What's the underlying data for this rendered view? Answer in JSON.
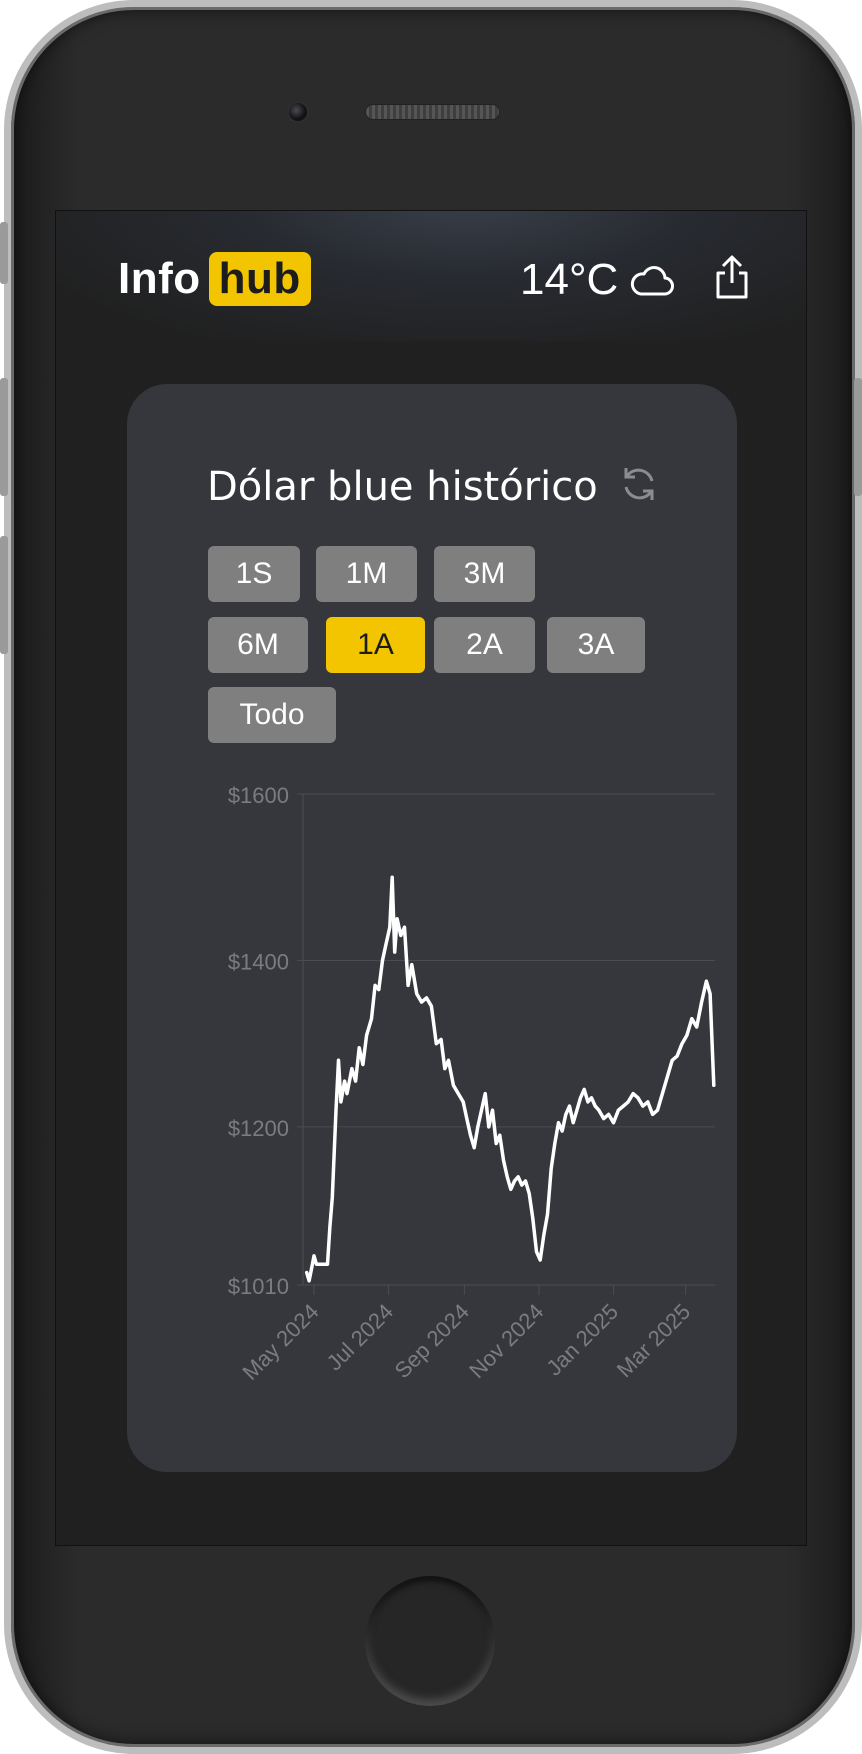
{
  "app": {
    "logo_part1": "Info",
    "logo_part2": "hub",
    "temperature": "14°C",
    "weather_icon": "cloud-icon",
    "share_icon": "share-icon"
  },
  "card": {
    "title": "Dólar blue histórico",
    "refresh_icon": "refresh-icon",
    "ranges": [
      "1S",
      "1M",
      "3M",
      "6M",
      "1A",
      "2A",
      "3A",
      "Todo"
    ],
    "selected_range": "1A"
  },
  "colors": {
    "accent": "#f2c500",
    "card_bg": "#35373c",
    "screen_bg": "#202020",
    "button_bg": "#7f7f7f",
    "line": "#ffffff",
    "axis_text": "#7a7c80",
    "grid": "#4a4c52"
  },
  "chart_data": {
    "type": "line",
    "title": "",
    "xlabel": "",
    "ylabel": "",
    "ylim": [
      1010,
      1600
    ],
    "y_ticks": [
      1010,
      1200,
      1400,
      1600
    ],
    "y_tick_labels": [
      "$1010",
      "$1200",
      "$1400",
      "$1600"
    ],
    "x_tick_labels": [
      "May 2024",
      "Jul 2024",
      "Sep 2024",
      "Nov 2024",
      "Jan 2025",
      "Mar 2025"
    ],
    "x_ticks": [
      "2024-05-01",
      "2024-07-01",
      "2024-09-01",
      "2024-11-01",
      "2025-01-01",
      "2025-03-01"
    ],
    "grid": true,
    "series": [
      {
        "values": [
          [
            "2024-04-25",
            1025
          ],
          [
            "2024-04-27",
            1015
          ],
          [
            "2024-04-29",
            1030
          ],
          [
            "2024-05-01",
            1045
          ],
          [
            "2024-05-03",
            1035
          ],
          [
            "2024-05-08",
            1035
          ],
          [
            "2024-05-12",
            1035
          ],
          [
            "2024-05-14",
            1080
          ],
          [
            "2024-05-16",
            1115
          ],
          [
            "2024-05-19",
            1220
          ],
          [
            "2024-05-21",
            1280
          ],
          [
            "2024-05-23",
            1230
          ],
          [
            "2024-05-26",
            1255
          ],
          [
            "2024-05-28",
            1240
          ],
          [
            "2024-06-01",
            1270
          ],
          [
            "2024-06-04",
            1255
          ],
          [
            "2024-06-07",
            1295
          ],
          [
            "2024-06-10",
            1275
          ],
          [
            "2024-06-13",
            1310
          ],
          [
            "2024-06-17",
            1330
          ],
          [
            "2024-06-20",
            1370
          ],
          [
            "2024-06-23",
            1365
          ],
          [
            "2024-06-26",
            1400
          ],
          [
            "2024-06-29",
            1420
          ],
          [
            "2024-07-02",
            1440
          ],
          [
            "2024-07-04",
            1500
          ],
          [
            "2024-07-06",
            1410
          ],
          [
            "2024-07-08",
            1450
          ],
          [
            "2024-07-11",
            1430
          ],
          [
            "2024-07-14",
            1440
          ],
          [
            "2024-07-17",
            1370
          ],
          [
            "2024-07-20",
            1395
          ],
          [
            "2024-07-24",
            1360
          ],
          [
            "2024-07-28",
            1350
          ],
          [
            "2024-08-01",
            1355
          ],
          [
            "2024-08-05",
            1345
          ],
          [
            "2024-08-09",
            1300
          ],
          [
            "2024-08-13",
            1305
          ],
          [
            "2024-08-16",
            1270
          ],
          [
            "2024-08-19",
            1280
          ],
          [
            "2024-08-23",
            1250
          ],
          [
            "2024-08-27",
            1240
          ],
          [
            "2024-08-31",
            1230
          ],
          [
            "2024-09-03",
            1210
          ],
          [
            "2024-09-06",
            1190
          ],
          [
            "2024-09-09",
            1175
          ],
          [
            "2024-09-12",
            1200
          ],
          [
            "2024-09-15",
            1220
          ],
          [
            "2024-09-18",
            1240
          ],
          [
            "2024-09-21",
            1200
          ],
          [
            "2024-09-24",
            1220
          ],
          [
            "2024-09-27",
            1180
          ],
          [
            "2024-09-30",
            1190
          ],
          [
            "2024-10-03",
            1160
          ],
          [
            "2024-10-06",
            1140
          ],
          [
            "2024-10-09",
            1125
          ],
          [
            "2024-10-12",
            1135
          ],
          [
            "2024-10-15",
            1140
          ],
          [
            "2024-10-18",
            1130
          ],
          [
            "2024-10-21",
            1135
          ],
          [
            "2024-10-24",
            1120
          ],
          [
            "2024-10-27",
            1090
          ],
          [
            "2024-10-30",
            1050
          ],
          [
            "2024-11-02",
            1040
          ],
          [
            "2024-11-05",
            1070
          ],
          [
            "2024-11-08",
            1095
          ],
          [
            "2024-11-11",
            1150
          ],
          [
            "2024-11-14",
            1180
          ],
          [
            "2024-11-17",
            1205
          ],
          [
            "2024-11-20",
            1195
          ],
          [
            "2024-11-23",
            1215
          ],
          [
            "2024-11-26",
            1225
          ],
          [
            "2024-11-29",
            1205
          ],
          [
            "2024-12-02",
            1220
          ],
          [
            "2024-12-05",
            1235
          ],
          [
            "2024-12-08",
            1245
          ],
          [
            "2024-12-11",
            1230
          ],
          [
            "2024-12-14",
            1235
          ],
          [
            "2024-12-17",
            1225
          ],
          [
            "2024-12-20",
            1220
          ],
          [
            "2024-12-24",
            1210
          ],
          [
            "2024-12-28",
            1215
          ],
          [
            "2025-01-01",
            1205
          ],
          [
            "2025-01-05",
            1220
          ],
          [
            "2025-01-09",
            1225
          ],
          [
            "2025-01-13",
            1230
          ],
          [
            "2025-01-17",
            1240
          ],
          [
            "2025-01-21",
            1235
          ],
          [
            "2025-01-25",
            1225
          ],
          [
            "2025-01-29",
            1230
          ],
          [
            "2025-02-02",
            1215
          ],
          [
            "2025-02-06",
            1220
          ],
          [
            "2025-02-10",
            1240
          ],
          [
            "2025-02-14",
            1260
          ],
          [
            "2025-02-18",
            1280
          ],
          [
            "2025-02-22",
            1285
          ],
          [
            "2025-02-26",
            1300
          ],
          [
            "2025-03-02",
            1310
          ],
          [
            "2025-03-06",
            1330
          ],
          [
            "2025-03-10",
            1320
          ],
          [
            "2025-03-14",
            1350
          ],
          [
            "2025-03-18",
            1375
          ],
          [
            "2025-03-21",
            1360
          ],
          [
            "2025-03-24",
            1250
          ]
        ]
      }
    ]
  }
}
